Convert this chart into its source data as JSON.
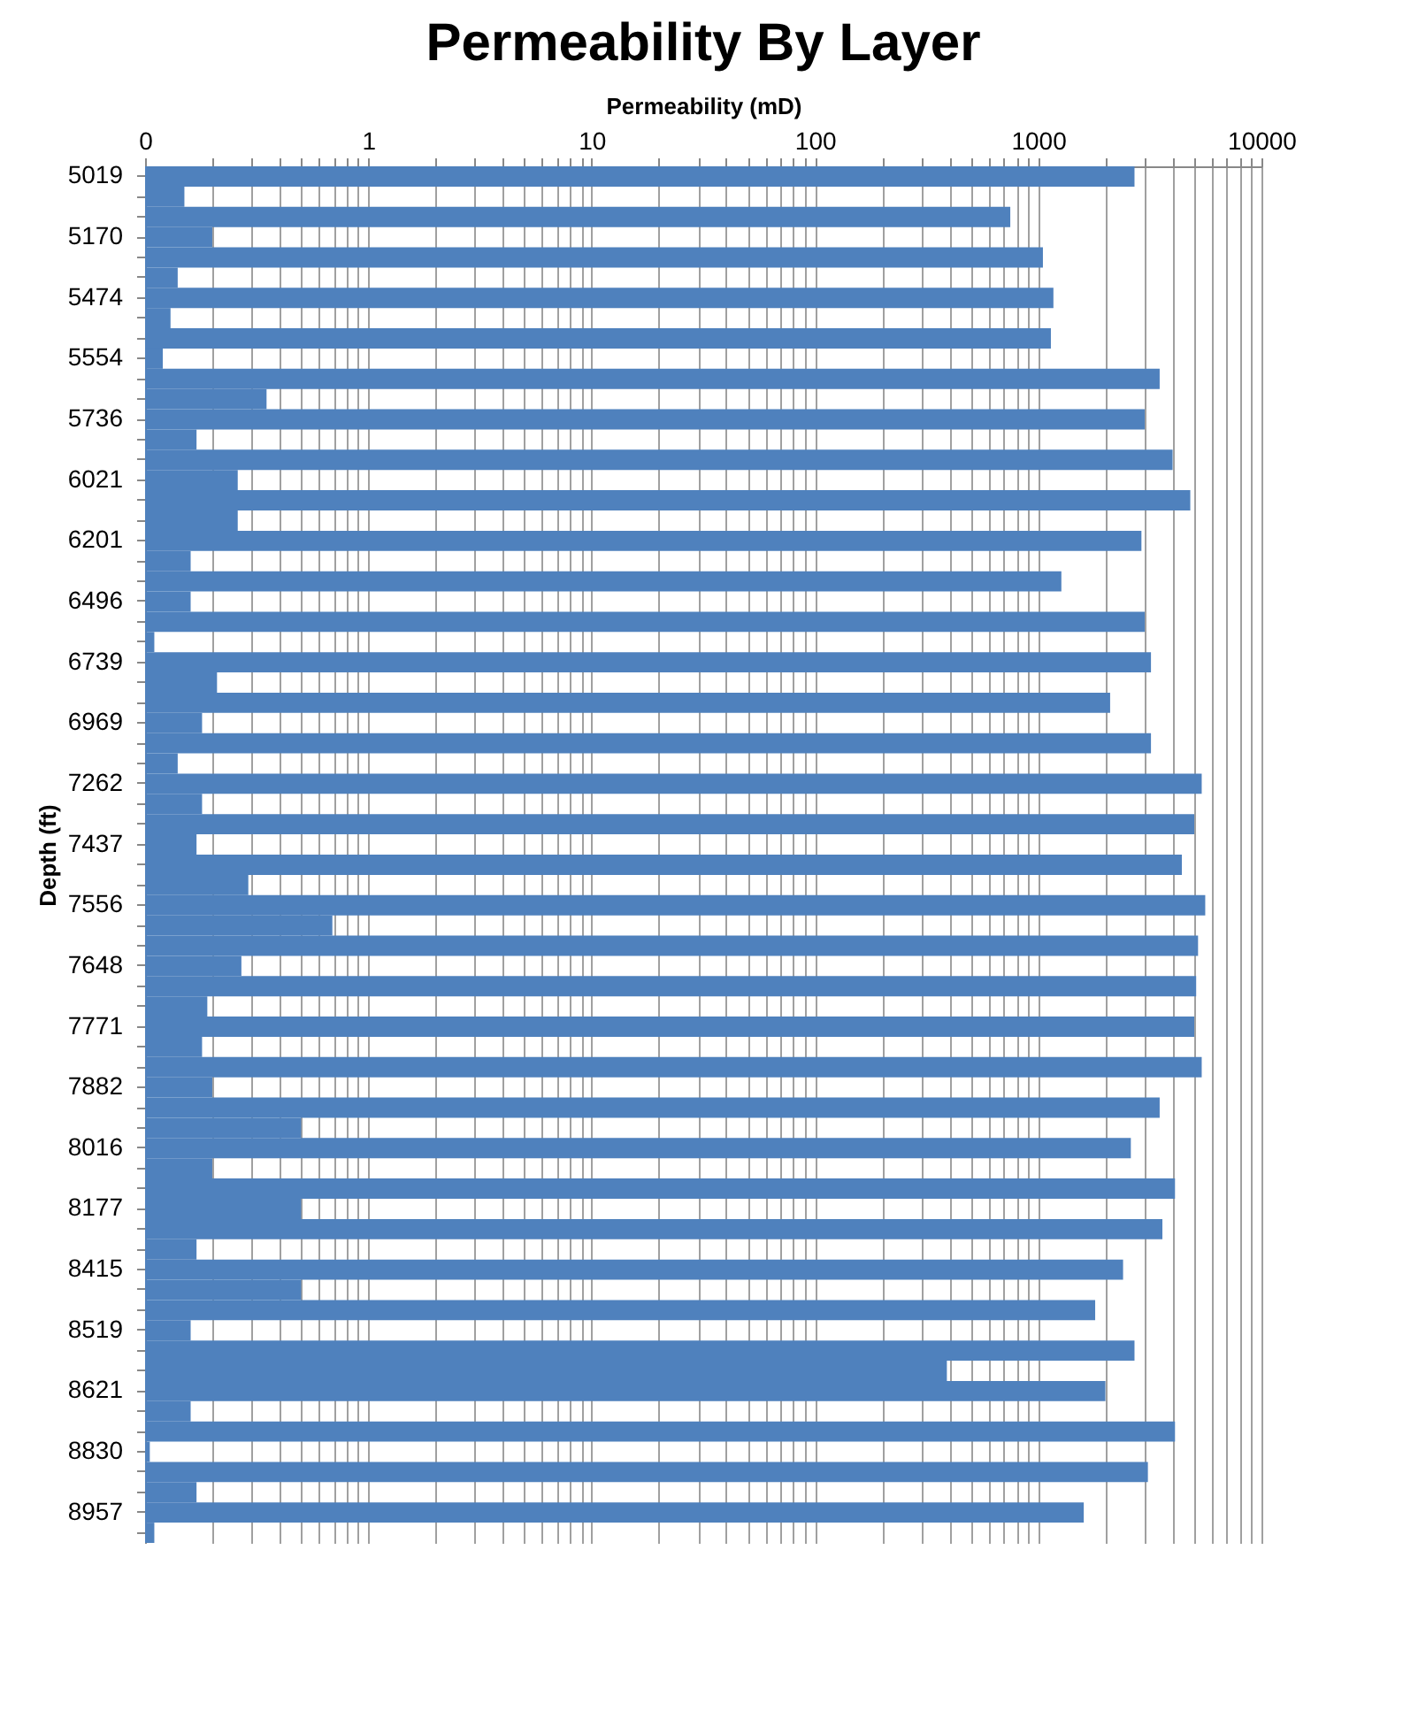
{
  "chart_data": {
    "type": "bar",
    "orientation": "horizontal",
    "title": "Permeability By Layer",
    "xlabel": "Permeability (mD)",
    "ylabel": "Depth (ft)",
    "log": "x",
    "grid": "x",
    "color": "#4f81bd",
    "categories": [
      "5019",
      null,
      null,
      "5170",
      null,
      null,
      "5474",
      null,
      null,
      "5554",
      null,
      null,
      "5736",
      null,
      null,
      "6021",
      null,
      null,
      "6201",
      null,
      null,
      "6496",
      null,
      null,
      "6739",
      null,
      null,
      "6969",
      null,
      null,
      "7262",
      null,
      null,
      "7437",
      null,
      null,
      "7556",
      null,
      null,
      "7648",
      null,
      null,
      "7771",
      null,
      null,
      "7882",
      null,
      null,
      "8016",
      null,
      null,
      "8177",
      null,
      null,
      "8415",
      null,
      null,
      "8519",
      null,
      null,
      "8621",
      null,
      null,
      "8830",
      null,
      null,
      "8957",
      null
    ],
    "values": [
      2700,
      0.15,
      750,
      0.2,
      1050,
      0.14,
      1170,
      0.13,
      1140,
      0.12,
      3500,
      0.35,
      3000,
      0.17,
      4000,
      0.26,
      4800,
      0.26,
      2900,
      0.16,
      1270,
      0.16,
      3000,
      0.11,
      3200,
      0.21,
      2100,
      0.18,
      3200,
      0.14,
      5400,
      0.18,
      5000,
      0.17,
      4400,
      0.29,
      5600,
      0.69,
      5200,
      0.27,
      5100,
      0.19,
      5000,
      0.18,
      5400,
      0.2,
      3500,
      0.5,
      2600,
      0.2,
      4100,
      0.5,
      3600,
      0.17,
      2400,
      0.5,
      1800,
      0.16,
      2700,
      390,
      2000,
      0.16,
      4100,
      0.105,
      3100,
      0.17,
      1600,
      0.11
    ],
    "xlim": [
      0.1,
      10000
    ],
    "xticks": [
      {
        "value": 0.1,
        "label": "0"
      },
      {
        "value": 0.2,
        "label": null
      },
      {
        "value": 0.3,
        "label": null
      },
      {
        "value": 0.4,
        "label": null
      },
      {
        "value": 0.5,
        "label": null
      },
      {
        "value": 0.6,
        "label": null
      },
      {
        "value": 0.7,
        "label": null
      },
      {
        "value": 0.8,
        "label": null
      },
      {
        "value": 0.9,
        "label": null
      },
      1,
      {
        "value": 2,
        "label": null
      },
      {
        "value": 3,
        "label": null
      },
      {
        "value": 4,
        "label": null
      },
      {
        "value": 5,
        "label": null
      },
      {
        "value": 6,
        "label": null
      },
      {
        "value": 7,
        "label": null
      },
      {
        "value": 8,
        "label": null
      },
      {
        "value": 9,
        "label": null
      },
      10,
      {
        "value": 20,
        "label": null
      },
      {
        "value": 30,
        "label": null
      },
      {
        "value": 40,
        "label": null
      },
      {
        "value": 50,
        "label": null
      },
      {
        "value": 60,
        "label": null
      },
      {
        "value": 70,
        "label": null
      },
      {
        "value": 80,
        "label": null
      },
      {
        "value": 90,
        "label": null
      },
      100,
      {
        "value": 200,
        "label": null
      },
      {
        "value": 300,
        "label": null
      },
      {
        "value": 400,
        "label": null
      },
      {
        "value": 500,
        "label": null
      },
      {
        "value": 600,
        "label": null
      },
      {
        "value": 700,
        "label": null
      },
      {
        "value": 800,
        "label": null
      },
      {
        "value": 900,
        "label": null
      },
      1000,
      {
        "value": 2000,
        "label": null
      },
      {
        "value": 3000,
        "label": null
      },
      {
        "value": 4000,
        "label": null
      },
      {
        "value": 5000,
        "label": null
      },
      {
        "value": 6000,
        "label": null
      },
      {
        "value": 7000,
        "label": null
      },
      {
        "value": 8000,
        "label": null
      },
      {
        "value": 9000,
        "label": null
      },
      10000
    ]
  }
}
